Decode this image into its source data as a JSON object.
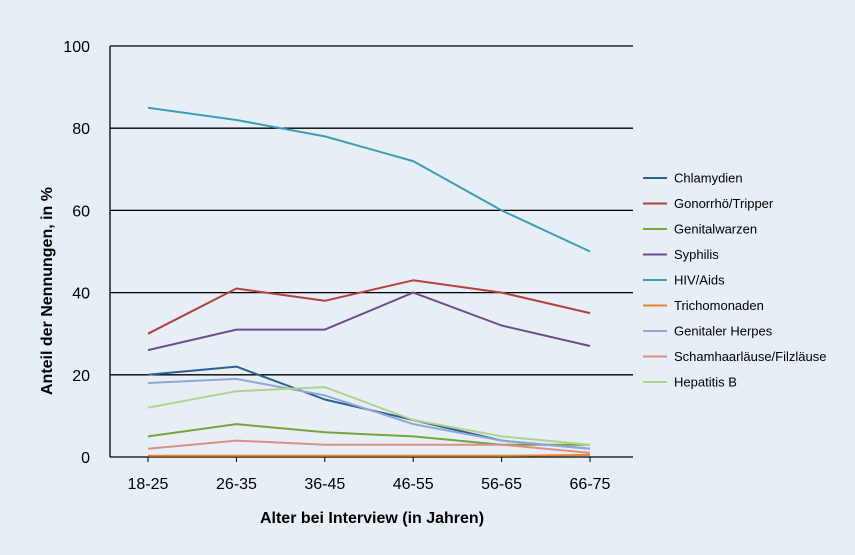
{
  "chart_data": {
    "type": "line",
    "title": "",
    "xlabel": "Alter bei Interview (in Jahren)",
    "ylabel": "Anteil der Nennungen, in %",
    "categories": [
      "18-25",
      "26-35",
      "36-45",
      "46-55",
      "56-65",
      "66-75"
    ],
    "ylim": [
      0,
      100
    ],
    "yticks": [
      "0",
      "20",
      "40",
      "60",
      "80",
      "100"
    ],
    "grid": "horizontal",
    "legend_position": "right",
    "series": [
      {
        "name": "Chlamydien",
        "color": "#2e5f94",
        "values": [
          20,
          22,
          14,
          9,
          4,
          2
        ]
      },
      {
        "name": "Gonorrhö/Tripper",
        "color": "#b2423d",
        "values": [
          30,
          41,
          38,
          43,
          40,
          35
        ]
      },
      {
        "name": "Genitalwarzen",
        "color": "#7ba33b",
        "values": [
          5,
          8,
          6,
          5,
          3,
          3
        ]
      },
      {
        "name": "Syphilis",
        "color": "#6e4c94",
        "values": [
          26,
          31,
          31,
          40,
          32,
          27
        ]
      },
      {
        "name": "HIV/Aids",
        "color": "#3a9fb8",
        "values": [
          85,
          82,
          78,
          72,
          60,
          50
        ]
      },
      {
        "name": "Trichomonaden",
        "color": "#e8852c",
        "values": [
          0.3,
          0.3,
          0.3,
          0.3,
          0.3,
          0.5
        ]
      },
      {
        "name": "Genitaler Herpes",
        "color": "#8fa8d8",
        "values": [
          18,
          19,
          15,
          8,
          4,
          2
        ]
      },
      {
        "name": "Schamhaarläuse/Filzläuse",
        "color": "#dd8e8c",
        "values": [
          2,
          4,
          3,
          3,
          3,
          1
        ]
      },
      {
        "name": "Hepatitis B",
        "color": "#b4d38a",
        "values": [
          12,
          16,
          17,
          9,
          5,
          3
        ]
      }
    ]
  }
}
